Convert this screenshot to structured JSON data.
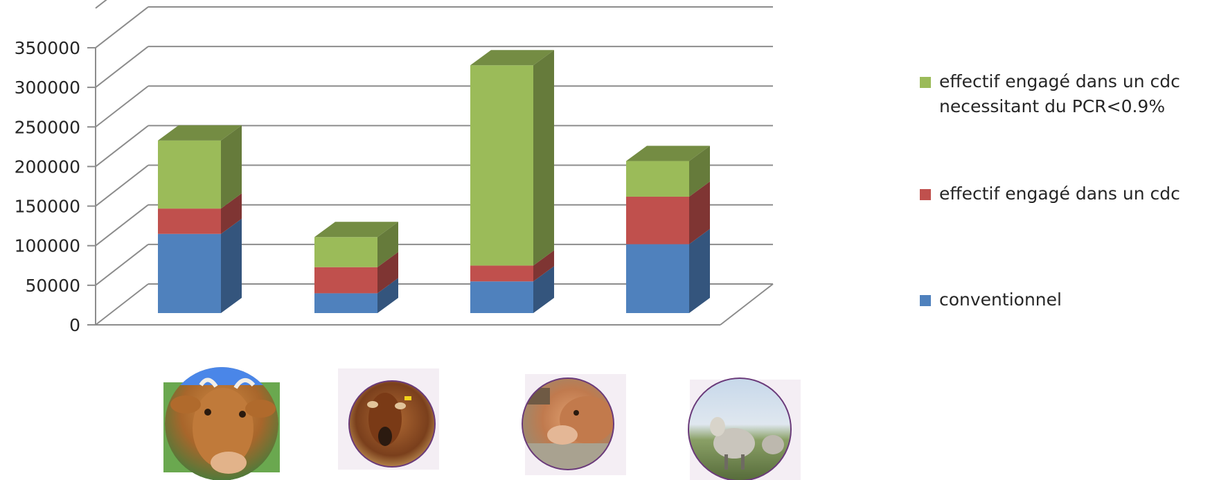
{
  "chart_data": {
    "type": "bar",
    "stacked": true,
    "three_d": true,
    "categories": [
      "",
      "",
      "",
      ""
    ],
    "category_icons": [
      "cow-photo",
      "goat-photo",
      "calf-photo",
      "sheep-photo"
    ],
    "series": [
      {
        "name": "conventionnel",
        "color": "#4F81BD",
        "values": [
          100000,
          25000,
          40000,
          87000
        ]
      },
      {
        "name": "effectif engagé dans un cdc",
        "color": "#C0504D",
        "values": [
          32000,
          33000,
          20000,
          60000
        ]
      },
      {
        "name": "effectif engagé dans un cdc necessitant du PCR<0.9%",
        "color": "#9BBB59",
        "values": [
          86000,
          38000,
          253000,
          45000
        ]
      }
    ],
    "yticks": [
      "0",
      "50000",
      "100000",
      "150000",
      "200000",
      "250000",
      "300000",
      "350000"
    ],
    "ylim": [
      0,
      400000
    ],
    "grid": true,
    "legend_position": "right",
    "title": "",
    "xlabel": "",
    "ylabel": ""
  }
}
